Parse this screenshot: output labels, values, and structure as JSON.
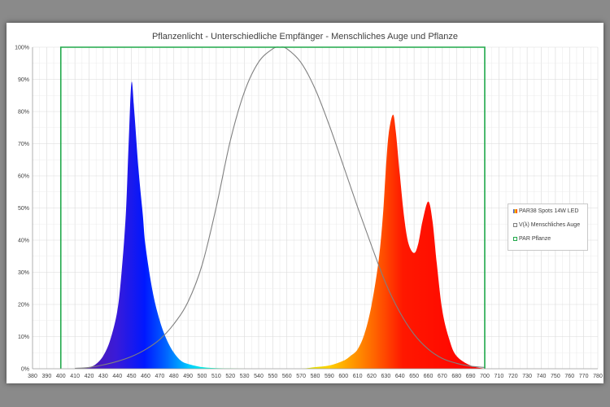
{
  "chart_data": {
    "type": "area",
    "title": "Pflanzenlicht - Unterschiedliche Empfänger - Menschliches Auge und Pflanze",
    "xlim": [
      380,
      780
    ],
    "ylim": [
      0,
      100
    ],
    "x_ticks": [
      "380",
      "390",
      "400",
      "410",
      "420",
      "430",
      "440",
      "450",
      "460",
      "470",
      "480",
      "490",
      "500",
      "510",
      "520",
      "530",
      "540",
      "550",
      "560",
      "570",
      "580",
      "590",
      "600",
      "610",
      "620",
      "630",
      "640",
      "650",
      "660",
      "670",
      "680",
      "690",
      "700",
      "710",
      "720",
      "730",
      "740",
      "750",
      "760",
      "770",
      "780"
    ],
    "y_ticks": [
      "0%",
      "10%",
      "20%",
      "30%",
      "40%",
      "50%",
      "60%",
      "70%",
      "80%",
      "90%",
      "100%"
    ],
    "grid": true,
    "legend_position": "right",
    "series": [
      {
        "name": "PAR38 Spots 14W LED",
        "style": "filled-spectrum",
        "x": [
          410,
          420,
          425,
          430,
          435,
          440,
          443,
          446,
          448,
          450,
          452,
          455,
          458,
          460,
          465,
          470,
          475,
          480,
          485,
          490,
          500,
          510,
          520,
          530,
          540,
          550,
          560,
          570,
          580,
          590,
          600,
          605,
          610,
          615,
          620,
          625,
          628,
          630,
          632,
          635,
          637,
          640,
          643,
          646,
          650,
          653,
          656,
          660,
          663,
          666,
          670,
          675,
          680,
          690,
          700
        ],
        "values": [
          0,
          0.5,
          1.5,
          4,
          9,
          18,
          30,
          48,
          70,
          89,
          80,
          62,
          48,
          38,
          24,
          15,
          9,
          5,
          2.5,
          1.5,
          0.5,
          0.2,
          0.1,
          0,
          0,
          0,
          0,
          0,
          0.5,
          1,
          2.5,
          4,
          6,
          11,
          20,
          34,
          48,
          62,
          73,
          79,
          74,
          60,
          47,
          39,
          36,
          39,
          46,
          52,
          46,
          33,
          18,
          9,
          4,
          1,
          0
        ]
      },
      {
        "name": "V(λ) Menschliches Auge",
        "style": "line",
        "color": "#808080",
        "x": [
          410,
          420,
          430,
          440,
          450,
          460,
          470,
          480,
          490,
          500,
          510,
          520,
          530,
          540,
          550,
          555,
          560,
          570,
          580,
          590,
          600,
          610,
          620,
          630,
          640,
          650,
          660,
          670,
          680,
          690,
          700
        ],
        "values": [
          0.12,
          0.4,
          1.2,
          2.3,
          3.8,
          6,
          9.1,
          13.9,
          20.8,
          32.3,
          50.3,
          71,
          86.2,
          95.4,
          99.5,
          100,
          99.5,
          95.2,
          87,
          75.7,
          63.1,
          50.3,
          38.1,
          26.5,
          17.5,
          10.7,
          6.1,
          3.2,
          1.7,
          0.8,
          0.4
        ]
      },
      {
        "name": "PAR Pflanze",
        "style": "line",
        "color": "#20a84a",
        "x": [
          400,
          400,
          700,
          700
        ],
        "values": [
          0,
          100,
          100,
          0
        ]
      }
    ]
  },
  "legend": [
    {
      "label": "PAR38 Spots 14W LED",
      "icon": "spectrum-swatch-icon",
      "color": "#e86a1a"
    },
    {
      "label": "V(λ) Menschliches Auge",
      "icon": "gray-square-icon",
      "color": "#808080"
    },
    {
      "label": "PAR Pflanze",
      "icon": "green-square-icon",
      "color": "#20a84a"
    }
  ]
}
